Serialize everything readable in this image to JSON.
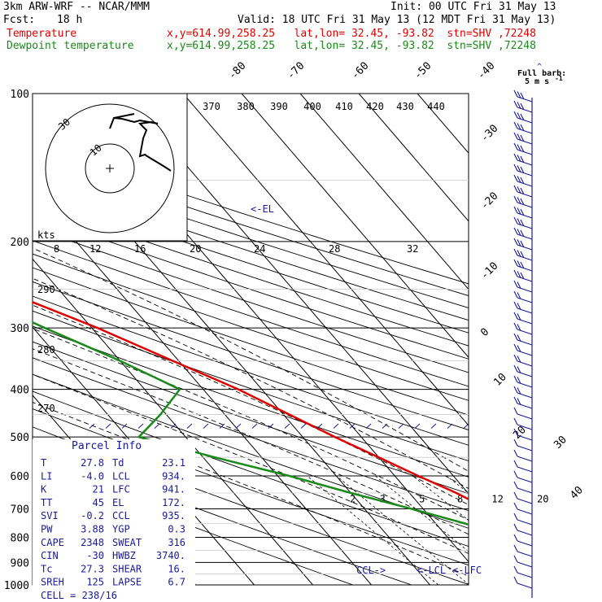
{
  "header": {
    "model": "3km ARW-WRF -- NCAR/MMM",
    "init": "Init: 00 UTC Fri 31 May 13",
    "fcst_label": "Fcst:",
    "fcst_value": "18 h",
    "valid": "Valid: 18 UTC Fri 31 May 13 (12 MDT Fri 31 May 13)",
    "temp_label": "Temperature",
    "dew_label": "Dewpoint temperature",
    "temp_info": "x,y=614.99,258.25   lat,lon= 32.45, -93.82  stn=SHV ,72248",
    "dew_info": "x,y=614.99,258.25   lat,lon= 32.45, -93.82  stn=SHV ,72248"
  },
  "colors": {
    "temperature": "#e00000",
    "dewpoint": "#1a8a1a",
    "axes": "#000000",
    "parcel_text": "#1a1a9a",
    "barb": "#1a1a9a"
  },
  "wind": {
    "label": "Full barb:",
    "sublabel": "5 m s",
    "unit_exp": "-1"
  },
  "parcel_info": {
    "title": "Parcel Info",
    "rows": [
      {
        "k1": "T",
        "v1": "27.8",
        "k2": "Td",
        "v2": "23.1"
      },
      {
        "k1": "LI",
        "v1": "-4.0",
        "k2": "LCL",
        "v2": "934."
      },
      {
        "k1": "K",
        "v1": "21",
        "k2": "LFC",
        "v2": "941."
      },
      {
        "k1": "TT",
        "v1": "45",
        "k2": "EL",
        "v2": "172."
      },
      {
        "k1": "SVI",
        "v1": "-0.2",
        "k2": "CCL",
        "v2": "935."
      },
      {
        "k1": "PW",
        "v1": "3.88",
        "k2": "YGP",
        "v2": "0.3"
      },
      {
        "k1": "CAPE",
        "v1": "2348",
        "k2": "SWEAT",
        "v2": "316"
      },
      {
        "k1": "CIN",
        "v1": "-30",
        "k2": "HWBZ",
        "v2": "3740."
      },
      {
        "k1": "Tc",
        "v1": "27.3",
        "k2": "SHEAR",
        "v2": "16."
      },
      {
        "k1": "SREH",
        "v1": "125",
        "k2": "LAPSE",
        "v2": "6.7"
      }
    ],
    "cell": "CELL = 238/16"
  },
  "chart_data": {
    "type": "line",
    "xlabel": "",
    "ylabel": "",
    "pressure_ticks": [
      "100",
      "200",
      "300",
      "400",
      "500",
      "600",
      "700",
      "800",
      "900",
      "1000"
    ],
    "isotherm_labels": [
      "-80",
      "-70",
      "-60",
      "-50",
      "-40",
      "-30",
      "-20",
      "-10",
      "0",
      "10",
      "20",
      "30",
      "40"
    ],
    "theta_labels": [
      "370",
      "380",
      "390",
      "400",
      "410",
      "420",
      "430",
      "440"
    ],
    "mixing_ratio_labels": [
      "2",
      "3",
      "5",
      "8",
      "12",
      "20"
    ],
    "hodograph": {
      "kts_label": "kts",
      "speed_labels": [
        "8",
        "12",
        "16",
        "20",
        "24",
        "28",
        "32"
      ],
      "height_labels": [
        "290",
        "280",
        "270"
      ],
      "ring_labels": [
        "30",
        "10"
      ]
    },
    "level_markers": {
      "el": "<-EL",
      "ccl": "CCL->",
      "lcl": "<-LCL",
      "lfc": "<-LFC"
    },
    "series": [
      {
        "name": "Temperature",
        "values": [
          [
            1000,
            28
          ],
          [
            975,
            26
          ],
          [
            950,
            24
          ],
          [
            925,
            23
          ],
          [
            900,
            22
          ],
          [
            850,
            20
          ],
          [
            800,
            17
          ],
          [
            750,
            14
          ],
          [
            700,
            11
          ],
          [
            650,
            8
          ],
          [
            600,
            4
          ],
          [
            550,
            0
          ],
          [
            500,
            -4.5
          ],
          [
            450,
            -9
          ],
          [
            400,
            -14
          ],
          [
            350,
            -21
          ],
          [
            300,
            -29
          ],
          [
            250,
            -40
          ],
          [
            200,
            -53
          ],
          [
            175,
            -60
          ],
          [
            150,
            -66
          ],
          [
            125,
            -70
          ],
          [
            100,
            -74
          ]
        ]
      },
      {
        "name": "Dewpoint temperature",
        "values": [
          [
            1000,
            23
          ],
          [
            975,
            22
          ],
          [
            950,
            21
          ],
          [
            925,
            20
          ],
          [
            900,
            19
          ],
          [
            850,
            16
          ],
          [
            800,
            11
          ],
          [
            750,
            5
          ],
          [
            700,
            -2
          ],
          [
            650,
            -10
          ],
          [
            600,
            -18
          ],
          [
            550,
            -28
          ],
          [
            500,
            -38
          ],
          [
            450,
            -31
          ],
          [
            400,
            -24
          ],
          [
            350,
            -30
          ],
          [
            300,
            -38
          ],
          [
            250,
            -47
          ],
          [
            200,
            -62
          ],
          [
            175,
            -72
          ],
          [
            150,
            -82
          ],
          [
            125,
            -88
          ],
          [
            100,
            -94
          ]
        ]
      }
    ]
  }
}
